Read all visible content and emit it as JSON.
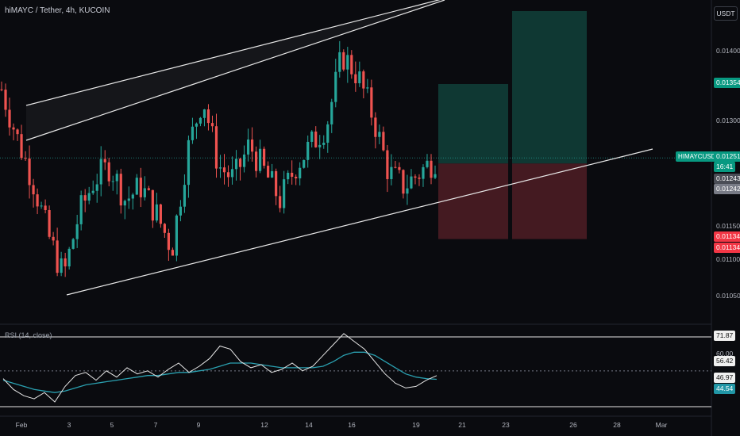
{
  "header": {
    "symbol_title": "hiMAYC / Tether, 4h, KUCOIN"
  },
  "currency_button": "USDT",
  "price_axis": {
    "ticks": [
      "0.01400",
      "0.01300",
      "0.01150",
      "0.01100",
      "0.01050"
    ],
    "tick_values": [
      0.014,
      0.013,
      0.0115,
      0.011,
      0.0105
    ]
  },
  "badges": {
    "target": "0.01354",
    "symbol_label": "HIMAYCUSDT",
    "last_price": "0.01251",
    "countdown": "16:41",
    "level_a": "0.01243",
    "level_b": "0.01242",
    "stop_a": "0.01134",
    "stop_b": "0.01134"
  },
  "rsi": {
    "title": "RSI (14, close)",
    "upper_band": "71.87",
    "level_60": "60.00",
    "rsi_value_a": "56.42",
    "rsi_value_b": "46.97",
    "ma_value": "44.54"
  },
  "time_axis": {
    "labels": [
      "Feb",
      "3",
      "5",
      "7",
      "9",
      "12",
      "14",
      "16",
      "19",
      "21",
      "23",
      "26",
      "28",
      "Mar"
    ]
  },
  "colors": {
    "background": "#0a0b0f",
    "bull": "#26a69a",
    "bear": "#ef5350",
    "target_zone": "#0f3d37",
    "stop_zone": "#4a1c24",
    "rsi_line": "#e6e6e6",
    "rsi_ma": "#2aa0b0",
    "channel": "#e8e8e8"
  },
  "chart_data": {
    "type": "candlestick",
    "title": "hiMAYC / Tether, 4h, KUCOIN",
    "x_range": [
      "Feb 1",
      "Mar 1"
    ],
    "ylim": [
      0.0102,
      0.0147
    ],
    "series": [
      {
        "name": "hiMAYC / Tether",
        "type": "candlestick",
        "approx_close_path": [
          0.0135,
          0.0128,
          0.0122,
          0.0114,
          0.0108,
          0.0117,
          0.0122,
          0.0124,
          0.0119,
          0.0121,
          0.0117,
          0.0112,
          0.0126,
          0.0134,
          0.0124,
          0.0122,
          0.0127,
          0.0123,
          0.0119,
          0.0124,
          0.0127,
          0.013,
          0.014,
          0.0137,
          0.0131,
          0.0123,
          0.0121,
          0.0123,
          0.0125
        ]
      },
      {
        "name": "RSI (14, close)",
        "type": "line",
        "last_values": [
          56.42,
          46.97
        ]
      },
      {
        "name": "RSI MA",
        "type": "line",
        "last_value": 44.54
      }
    ],
    "levels": {
      "last_price": 0.01251,
      "entry": 0.01243,
      "target": 0.01354,
      "stop": 0.01134,
      "rsi_upper_band": 71.87
    },
    "annotations": [
      "ascending channel",
      "long position tool",
      "price axis in USDT"
    ]
  }
}
